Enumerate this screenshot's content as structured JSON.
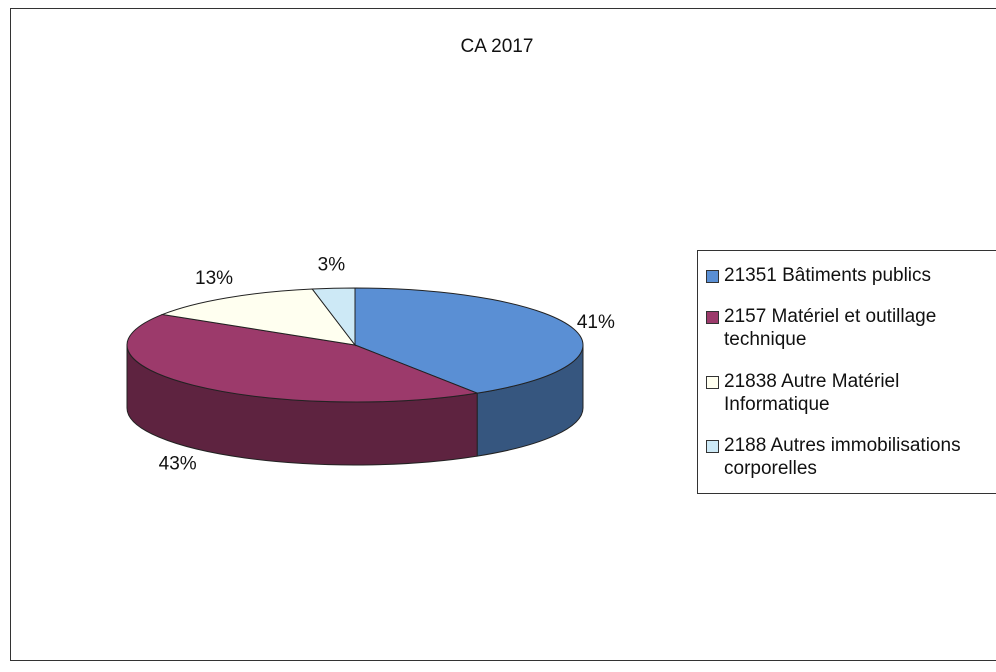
{
  "chart_data": {
    "type": "pie3d",
    "title": "CA 2017",
    "categories": [
      "21351 Bâtiments publics",
      "2157 Matériel et outillage technique",
      "21838 Autre Matériel Informatique",
      "2188 Autres immobilisations corporelles"
    ],
    "values": [
      41,
      43,
      13,
      3
    ],
    "value_labels": [
      "41%",
      "43%",
      "13%",
      "3%"
    ],
    "colors": [
      "#5a8fd4",
      "#9c3a6b",
      "#fffff0",
      "#cde9f6"
    ],
    "legend": "right"
  }
}
